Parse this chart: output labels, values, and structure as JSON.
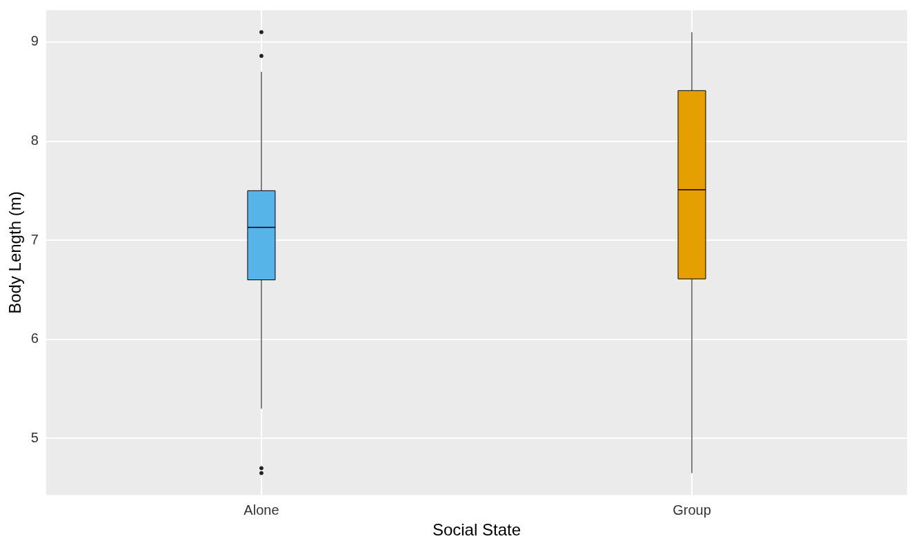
{
  "chart_data": {
    "type": "box",
    "xlabel": "Social State",
    "ylabel": "Body Length (m)",
    "categories": [
      "Alone",
      "Group"
    ],
    "colors": [
      "#56b4e9",
      "#e69f00"
    ],
    "boxes": [
      {
        "low": 5.3,
        "q1": 6.6,
        "median": 7.13,
        "q3": 7.5,
        "high": 8.7,
        "outliers": [
          4.65,
          4.7,
          8.86,
          9.1
        ]
      },
      {
        "low": 4.65,
        "q1": 6.61,
        "median": 7.51,
        "q3": 8.51,
        "high": 9.1
      }
    ],
    "ylim": [
      4.43,
      9.32
    ],
    "yticks": [
      5,
      6,
      7,
      8,
      9
    ],
    "grid": true,
    "legend": false
  }
}
